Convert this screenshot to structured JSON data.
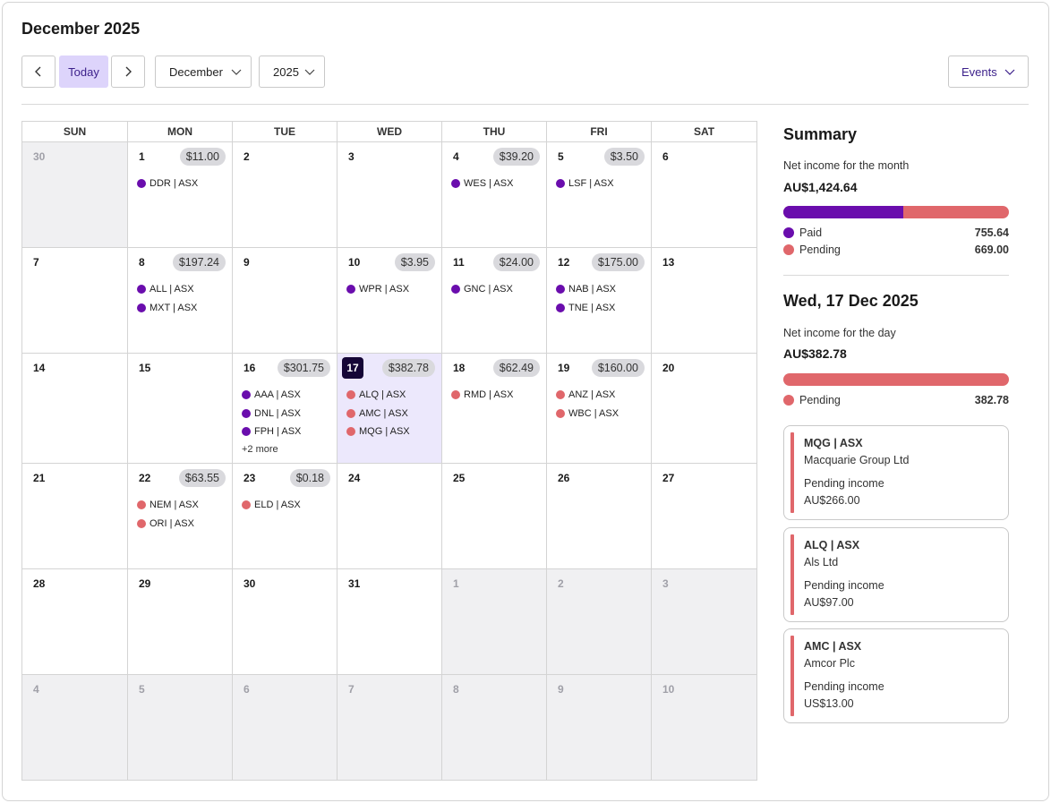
{
  "header": {
    "title": "December 2025"
  },
  "toolbar": {
    "today_label": "Today",
    "month_value": "December",
    "year_value": "2025",
    "events_label": "Events"
  },
  "calendar": {
    "weekdays": [
      "SUN",
      "MON",
      "TUE",
      "WED",
      "THU",
      "FRI",
      "SAT"
    ],
    "weeks": [
      [
        {
          "day": "30",
          "other": true
        },
        {
          "day": "1",
          "amount": "$11.00",
          "events": [
            {
              "label": "DDR | ASX",
              "status": "paid"
            }
          ]
        },
        {
          "day": "2"
        },
        {
          "day": "3"
        },
        {
          "day": "4",
          "amount": "$39.20",
          "events": [
            {
              "label": "WES | ASX",
              "status": "paid"
            }
          ]
        },
        {
          "day": "5",
          "amount": "$3.50",
          "events": [
            {
              "label": "LSF | ASX",
              "status": "paid"
            }
          ]
        },
        {
          "day": "6"
        }
      ],
      [
        {
          "day": "7"
        },
        {
          "day": "8",
          "amount": "$197.24",
          "events": [
            {
              "label": "ALL | ASX",
              "status": "paid"
            },
            {
              "label": "MXT | ASX",
              "status": "paid"
            }
          ]
        },
        {
          "day": "9"
        },
        {
          "day": "10",
          "amount": "$3.95",
          "events": [
            {
              "label": "WPR | ASX",
              "status": "paid"
            }
          ]
        },
        {
          "day": "11",
          "amount": "$24.00",
          "events": [
            {
              "label": "GNC | ASX",
              "status": "paid"
            }
          ]
        },
        {
          "day": "12",
          "amount": "$175.00",
          "events": [
            {
              "label": "NAB | ASX",
              "status": "paid"
            },
            {
              "label": "TNE | ASX",
              "status": "paid"
            }
          ]
        },
        {
          "day": "13"
        }
      ],
      [
        {
          "day": "14"
        },
        {
          "day": "15"
        },
        {
          "day": "16",
          "amount": "$301.75",
          "events": [
            {
              "label": "AAA | ASX",
              "status": "paid"
            },
            {
              "label": "DNL | ASX",
              "status": "paid"
            },
            {
              "label": "FPH | ASX",
              "status": "paid"
            }
          ],
          "more": "+2 more"
        },
        {
          "day": "17",
          "today": true,
          "amount": "$382.78",
          "events": [
            {
              "label": "ALQ | ASX",
              "status": "pending"
            },
            {
              "label": "AMC | ASX",
              "status": "pending"
            },
            {
              "label": "MQG | ASX",
              "status": "pending"
            }
          ]
        },
        {
          "day": "18",
          "amount": "$62.49",
          "events": [
            {
              "label": "RMD | ASX",
              "status": "pending"
            }
          ]
        },
        {
          "day": "19",
          "amount": "$160.00",
          "events": [
            {
              "label": "ANZ | ASX",
              "status": "pending"
            },
            {
              "label": "WBC | ASX",
              "status": "pending"
            }
          ]
        },
        {
          "day": "20"
        }
      ],
      [
        {
          "day": "21"
        },
        {
          "day": "22",
          "amount": "$63.55",
          "events": [
            {
              "label": "NEM | ASX",
              "status": "pending"
            },
            {
              "label": "ORI | ASX",
              "status": "pending"
            }
          ]
        },
        {
          "day": "23",
          "amount": "$0.18",
          "events": [
            {
              "label": "ELD | ASX",
              "status": "pending"
            }
          ]
        },
        {
          "day": "24"
        },
        {
          "day": "25"
        },
        {
          "day": "26"
        },
        {
          "day": "27"
        }
      ],
      [
        {
          "day": "28"
        },
        {
          "day": "29"
        },
        {
          "day": "30"
        },
        {
          "day": "31"
        },
        {
          "day": "1",
          "other": true
        },
        {
          "day": "2",
          "other": true
        },
        {
          "day": "3",
          "other": true
        }
      ],
      [
        {
          "day": "4",
          "other": true
        },
        {
          "day": "5",
          "other": true
        },
        {
          "day": "6",
          "other": true
        },
        {
          "day": "7",
          "other": true
        },
        {
          "day": "8",
          "other": true
        },
        {
          "day": "9",
          "other": true
        },
        {
          "day": "10",
          "other": true
        }
      ]
    ]
  },
  "summary": {
    "title": "Summary",
    "month_label": "Net income for the month",
    "month_value": "AU$1,424.64",
    "month_paid_fraction": 0.53,
    "paid_label": "Paid",
    "paid_value": "755.64",
    "pending_label": "Pending",
    "pending_value": "669.00",
    "day_title": "Wed, 17 Dec 2025",
    "day_label": "Net income for the day",
    "day_value": "AU$382.78",
    "day_paid_fraction": 0,
    "day_pending_label": "Pending",
    "day_pending_value": "382.78",
    "cards": [
      {
        "ticker": "MQG | ASX",
        "name": "Macquarie Group Ltd",
        "status": "Pending income",
        "amount": "AU$266.00"
      },
      {
        "ticker": "ALQ | ASX",
        "name": "Als Ltd",
        "status": "Pending income",
        "amount": "AU$97.00"
      },
      {
        "ticker": "AMC | ASX",
        "name": "Amcor Plc",
        "status": "Pending income",
        "amount": "US$13.00"
      }
    ]
  },
  "colors": {
    "paid": "#6a0dad",
    "pending": "#e0676b",
    "today_bg": "#ece8fc",
    "accent": "#3b1f8a"
  }
}
